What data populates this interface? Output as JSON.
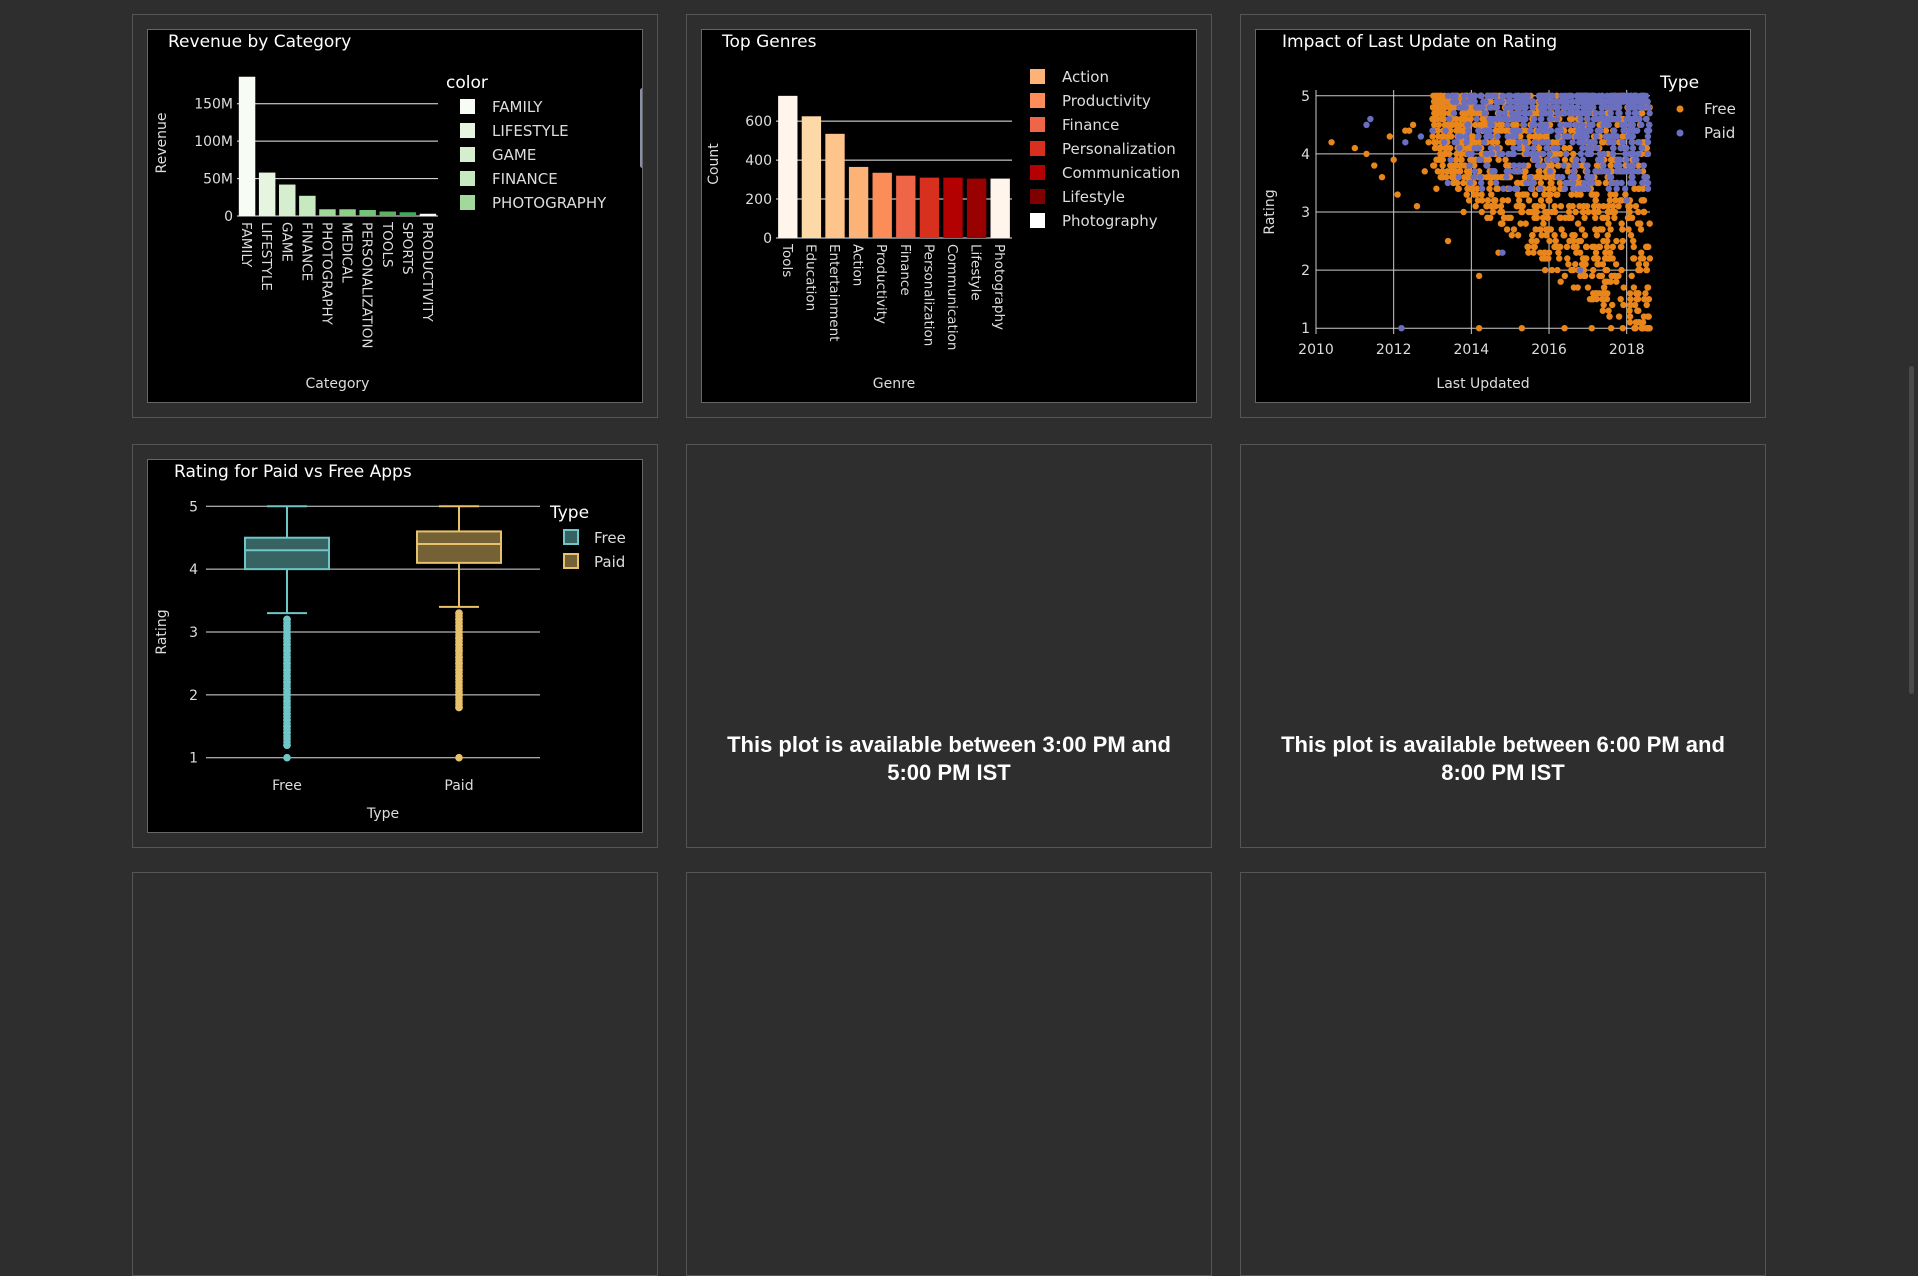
{
  "panels": {
    "unavailable_1": "This plot is available between 3:00 PM and 5:00 PM IST",
    "unavailable_2": "This plot is available between 6:00 PM and 8:00 PM IST"
  },
  "colors": {
    "page_bg": "#2e2e2e",
    "plot_bg": "#000000",
    "free": "#e8861c",
    "paid": "#6a6fc0",
    "box_free": "#6ec6c6",
    "box_paid": "#e8c26a"
  },
  "chart_data": [
    {
      "type": "bar",
      "title": "Revenue by Category",
      "xlabel": "Category",
      "ylabel": "Revenue",
      "categories": [
        "FAMILY",
        "LIFESTYLE",
        "GAME",
        "FINANCE",
        "PHOTOGRAPHY",
        "MEDICAL",
        "PERSONALIZATION",
        "TOOLS",
        "SPORTS",
        "PRODUCTIVITY"
      ],
      "values": [
        186000000,
        58000000,
        42000000,
        27000000,
        9000000,
        9000000,
        8000000,
        6000000,
        5000000,
        3000000
      ],
      "colors": [
        "#f7fcf5",
        "#e5f5e0",
        "#d5eecd",
        "#c7e9c0",
        "#a1d99b",
        "#8fd087",
        "#74c476",
        "#5cb45f",
        "#41ab5d",
        "#f7fcf5"
      ],
      "yticks": [
        0,
        50000000,
        100000000,
        150000000
      ],
      "ytick_labels": [
        "0",
        "50M",
        "100M",
        "150M"
      ],
      "ylim": [
        0,
        195000000
      ],
      "legend_title": "color",
      "legend": [
        "FAMILY",
        "LIFESTYLE",
        "GAME",
        "FINANCE",
        "PHOTOGRAPHY"
      ],
      "legend_placement": "right",
      "grid": "horizontal"
    },
    {
      "type": "bar",
      "title": "Top Genres",
      "xlabel": "Genre",
      "ylabel": "Count",
      "categories": [
        "Tools",
        "Education",
        "Entertainment",
        "Action",
        "Productivity",
        "Finance",
        "Personalization",
        "Communication",
        "Lifestyle",
        "Photography"
      ],
      "values": [
        730,
        625,
        535,
        365,
        335,
        320,
        310,
        310,
        305,
        305
      ],
      "colors": [
        "#fff5eb",
        "#fdd9a8",
        "#fdc48b",
        "#fdb377",
        "#fc8d59",
        "#ef6548",
        "#d7301f",
        "#b30000",
        "#990000",
        "#fff5eb"
      ],
      "yticks": [
        0,
        200,
        400,
        600
      ],
      "ylim": [
        0,
        760
      ],
      "legend": [
        "Action",
        "Productivity",
        "Finance",
        "Personalization",
        "Communication",
        "Lifestyle",
        "Photography"
      ],
      "legend_colors": [
        "#fdb377",
        "#fc8d59",
        "#ef6548",
        "#d7301f",
        "#b30000",
        "#7f0000",
        "#ffffff"
      ],
      "legend_placement": "right",
      "grid": "horizontal"
    },
    {
      "type": "scatter",
      "title": "Impact of Last Update on Rating",
      "xlabel": "Last Updated",
      "ylabel": "Rating",
      "xlim": [
        2010,
        2018.6
      ],
      "ylim": [
        0.9,
        5.1
      ],
      "xticks": [
        2010,
        2012,
        2014,
        2016,
        2018
      ],
      "yticks": [
        1,
        2,
        3,
        4,
        5
      ],
      "legend_title": "Type",
      "legend_placement": "top-right",
      "grid": "both",
      "series": [
        {
          "name": "Free",
          "color": "#e8861c",
          "x": [
            2010.4,
            2011.0,
            2011.3,
            2011.5,
            2011.7,
            2011.9,
            2012.0,
            2012.1,
            2012.3,
            2012.5,
            2012.6,
            2012.8,
            2012.9,
            2013.0,
            2013.1,
            2013.2,
            2013.3,
            2013.4,
            2013.5,
            2013.6,
            2013.7,
            2013.8,
            2013.9,
            2014.0,
            2014.1,
            2014.2,
            2014.3,
            2014.4,
            2014.5,
            2014.6,
            2014.7,
            2014.8,
            2014.9,
            2015.0,
            2015.1,
            2015.2,
            2015.3,
            2015.4,
            2015.5,
            2015.6,
            2015.7,
            2015.8,
            2015.9,
            2016.0,
            2016.1,
            2016.2,
            2016.3,
            2016.4,
            2016.5,
            2016.6,
            2016.7,
            2016.8,
            2016.9,
            2017.0,
            2017.1,
            2017.2,
            2017.3,
            2017.4,
            2017.5,
            2017.6,
            2017.7,
            2017.8,
            2017.9,
            2018.0,
            2018.1,
            2018.2,
            2018.3,
            2018.4,
            2018.5,
            2018.55,
            2014.2,
            2015.3,
            2016.4,
            2017.1,
            2017.6,
            2018.2,
            2018.4,
            2018.5,
            2017.9,
            2018.3,
            2018.45,
            2018.5,
            2018.1,
            2017.5,
            2016.8,
            2014.8,
            2013.5,
            2012.4
          ],
          "y": [
            4.2,
            4.1,
            4.0,
            3.8,
            3.6,
            4.3,
            3.9,
            3.3,
            4.4,
            4.5,
            3.1,
            3.7,
            4.2,
            4.6,
            3.4,
            4.0,
            4.3,
            2.5,
            4.8,
            3.9,
            4.1,
            3.0,
            4.5,
            4.7,
            4.2,
            1.9,
            4.4,
            3.6,
            4.9,
            4.0,
            2.3,
            4.5,
            3.8,
            4.6,
            4.2,
            3.5,
            4.8,
            2.8,
            4.3,
            4.7,
            3.1,
            4.9,
            2.0,
            4.4,
            3.7,
            4.6,
            1.8,
            4.1,
            4.8,
            2.6,
            3.9,
            4.5,
            2.2,
            4.7,
            3.3,
            4.9,
            1.6,
            4.2,
            2.9,
            4.6,
            1.9,
            4.8,
            2.5,
            4.3,
            1.5,
            3.4,
            1.3,
            4.7,
            2.1,
            1.7,
            1.0,
            1.0,
            1.0,
            1.0,
            1.0,
            1.0,
            1.0,
            1.0,
            1.0,
            2.0,
            3.0,
            2.4,
            1.4,
            1.8,
            2.0,
            2.8,
            3.6,
            4.4
          ],
          "note": "dense cluster 2013-2018.6 at ratings 1-5"
        },
        {
          "name": "Paid",
          "color": "#6a6fc0",
          "x": [
            2011.3,
            2011.4,
            2012.2,
            2012.7,
            2013.0,
            2013.3,
            2013.6,
            2013.9,
            2014.2,
            2014.5,
            2014.8,
            2015.1,
            2015.4,
            2015.7,
            2016.0,
            2016.3,
            2016.6,
            2016.9,
            2017.2,
            2017.5,
            2017.8,
            2018.1,
            2018.4,
            2014.9,
            2015.6,
            2016.2,
            2016.8,
            2017.4,
            2018.0,
            2018.3,
            2012.3,
            2014.0,
            2017.0,
            2017.6,
            2018.5
          ],
          "y": [
            4.5,
            4.6,
            1.0,
            4.3,
            4.4,
            4.2,
            5.0,
            4.5,
            4.8,
            4.3,
            2.3,
            4.6,
            4.7,
            4.0,
            5.0,
            4.4,
            4.9,
            4.2,
            4.7,
            4.6,
            4.8,
            4.5,
            4.9,
            3.6,
            4.1,
            3.9,
            2.0,
            3.8,
            3.2,
            4.0,
            4.2,
            4.9,
            5.0,
            4.3,
            4.6
          ],
          "note": "dense band 2013.5-2018.6 at ratings 3.5-5"
        }
      ]
    },
    {
      "type": "box",
      "title": "Rating for Paid vs Free Apps",
      "xlabel": "Type",
      "ylabel": "Rating",
      "categories": [
        "Free",
        "Paid"
      ],
      "ylim": [
        0.9,
        5.1
      ],
      "yticks": [
        1,
        2,
        3,
        4,
        5
      ],
      "legend_title": "Type",
      "legend_placement": "top-right",
      "series": [
        {
          "name": "Free",
          "color": "#6ec6c6",
          "min": 3.3,
          "q1": 4.0,
          "median": 4.3,
          "q3": 4.5,
          "max": 5.0,
          "outliers": [
            3.2,
            3.1,
            3.0,
            2.9,
            2.8,
            2.7,
            2.6,
            2.5,
            2.4,
            2.3,
            2.2,
            2.1,
            2.0,
            1.9,
            1.8,
            1.7,
            1.6,
            1.5,
            1.4,
            1.2,
            1.0
          ]
        },
        {
          "name": "Paid",
          "color": "#e8c26a",
          "min": 3.4,
          "q1": 4.1,
          "median": 4.4,
          "q3": 4.6,
          "max": 5.0,
          "outliers": [
            3.3,
            3.2,
            3.1,
            3.0,
            2.9,
            2.8,
            2.7,
            2.6,
            2.5,
            2.4,
            2.3,
            2.0,
            1.8,
            1.0
          ]
        }
      ]
    }
  ]
}
